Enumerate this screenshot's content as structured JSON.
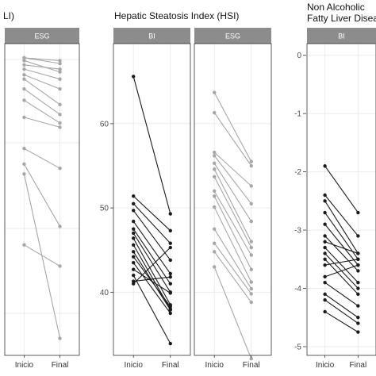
{
  "figure": {
    "title_fli": "LI)",
    "title_hsi": "Hepatic Steatosis Index (HSI)",
    "title_nafld_line1": "Non Alcoholic",
    "title_nafld_line2": "Fatty Liver Diseas",
    "x_label_start": "Inicio",
    "x_label_end": "Final",
    "colors": {
      "BI": "#1a1a1a",
      "ESG": "#a6a6a6",
      "strip": "#8c8c8c",
      "frame": "#333333",
      "grid": "#ebebeb"
    }
  },
  "chart_data": [
    {
      "type": "line",
      "title": "LI)",
      "x": [
        "Inicio",
        "Final"
      ],
      "ylim": [
        -40,
        180
      ],
      "y_ticks": [],
      "panels": [
        {
          "name": "ESG",
          "series": [
            {
              "values": [
                170,
                168
              ]
            },
            {
              "values": [
                170,
                166
              ]
            },
            {
              "values": [
                168,
                160
              ]
            },
            {
              "values": [
                165,
                162
              ]
            },
            {
              "values": [
                162,
                155
              ]
            },
            {
              "values": [
                158,
                148
              ]
            },
            {
              "values": [
                155,
                137
              ]
            },
            {
              "values": [
                148,
                130
              ]
            },
            {
              "values": [
                140,
                124
              ]
            },
            {
              "values": [
                128,
                121
              ]
            },
            {
              "values": [
                106,
                92
              ]
            },
            {
              "values": [
                95,
                51
              ]
            },
            {
              "values": [
                38,
                23
              ]
            },
            {
              "values": [
                88,
                -28
              ]
            }
          ]
        }
      ]
    },
    {
      "type": "line",
      "title": "Hepatic Steatosis Index (HSI)",
      "x": [
        "Inicio",
        "Final"
      ],
      "ylim": [
        32.5,
        69.5
      ],
      "y_ticks": [
        "40",
        "50",
        "60"
      ],
      "panels": [
        {
          "name": "BI",
          "series": [
            {
              "values": [
                65.6,
                49.3
              ]
            },
            {
              "values": [
                51.4,
                47.3
              ]
            },
            {
              "values": [
                50.5,
                45.8
              ]
            },
            {
              "values": [
                49.7,
                43.8
              ]
            },
            {
              "values": [
                48.4,
                42.2
              ]
            },
            {
              "values": [
                47.5,
                41.0
              ]
            },
            {
              "values": [
                47.0,
                40.0
              ]
            },
            {
              "values": [
                46.4,
                38.5
              ]
            },
            {
              "values": [
                45.6,
                38.0
              ]
            },
            {
              "values": [
                44.8,
                37.9
              ]
            },
            {
              "values": [
                44.2,
                38.3
              ]
            },
            {
              "values": [
                43.5,
                37.5
              ]
            },
            {
              "values": [
                42.7,
                39.9
              ]
            },
            {
              "values": [
                42.0,
                33.9
              ]
            },
            {
              "values": [
                41.3,
                41.8
              ]
            },
            {
              "values": [
                41.0,
                45.3
              ]
            }
          ]
        },
        {
          "name": "ESG",
          "series": [
            {
              "values": [
                63.7,
                55.5
              ]
            },
            {
              "values": [
                61.3,
                55.0
              ]
            },
            {
              "values": [
                56.6,
                52.6
              ]
            },
            {
              "values": [
                56.2,
                50.5
              ]
            },
            {
              "values": [
                55.3,
                48.4
              ]
            },
            {
              "values": [
                54.6,
                46.0
              ]
            },
            {
              "values": [
                53.7,
                45.3
              ]
            },
            {
              "values": [
                52.0,
                44.4
              ]
            },
            {
              "values": [
                51.4,
                42.7
              ]
            },
            {
              "values": [
                50.1,
                41.2
              ]
            },
            {
              "values": [
                47.5,
                40.4
              ]
            },
            {
              "values": [
                45.8,
                39.8
              ]
            },
            {
              "values": [
                44.8,
                38.8
              ]
            },
            {
              "values": [
                43.0,
                32.1
              ]
            }
          ]
        }
      ]
    },
    {
      "type": "line",
      "title": "Non Alcoholic Fatty Liver Diseas",
      "x": [
        "Inicio",
        "Final"
      ],
      "ylim": [
        -5.15,
        0.2
      ],
      "y_ticks": [
        "0",
        "-1",
        "-2",
        "-3",
        "-4",
        "-5"
      ],
      "panels": [
        {
          "name": "BI",
          "series": [
            {
              "values": [
                -1.9,
                -2.7
              ]
            },
            {
              "values": [
                -2.4,
                -3.1
              ]
            },
            {
              "values": [
                -2.5,
                -3.4
              ]
            },
            {
              "values": [
                -2.7,
                -3.5
              ]
            },
            {
              "values": [
                -2.9,
                -3.6
              ]
            },
            {
              "values": [
                -3.1,
                -3.7
              ]
            },
            {
              "values": [
                -3.2,
                -3.4
              ]
            },
            {
              "values": [
                -3.3,
                -3.9
              ]
            },
            {
              "values": [
                -3.4,
                -4.0
              ]
            },
            {
              "values": [
                -3.5,
                -4.1
              ]
            },
            {
              "values": [
                -3.6,
                -3.5
              ]
            },
            {
              "values": [
                -3.8,
                -3.6
              ]
            },
            {
              "values": [
                -3.9,
                -4.3
              ]
            },
            {
              "values": [
                -4.1,
                -4.5
              ]
            },
            {
              "values": [
                -4.2,
                -4.6
              ]
            },
            {
              "values": [
                -4.4,
                -4.75
              ]
            }
          ]
        }
      ]
    }
  ]
}
